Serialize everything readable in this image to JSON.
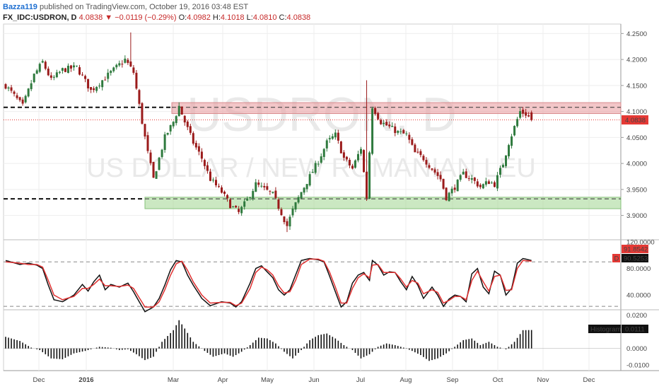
{
  "header": {
    "user": "Bazza119",
    "published": "published on TradingView.com, October 19, 2016 03:48 EST",
    "symbol": "FX_IDC:USDRON, D",
    "last": "4.0838",
    "change": "−0.0119 (−0.29%)",
    "open_label": "O:",
    "open": "4.0982",
    "high_label": "H:",
    "high": "4.1018",
    "low_label": "L:",
    "low": "4.0810",
    "close_label": "C:",
    "close": "4.0838"
  },
  "watermark": {
    "symbol": "USDRON, D",
    "description": "US DOLLAR / NEW ROMANIAN LEU"
  },
  "colors": {
    "up": "#2f7a3e",
    "down": "#9b1b1b",
    "resistance_zone": "#e9a0a3",
    "support_zone": "#a8d89a",
    "stoch_k": "#111111",
    "stoch_d": "#e03030",
    "price_badge": "#e53935"
  },
  "chart_data": {
    "type": "candlestick",
    "price_axis": {
      "ylim": [
        3.86,
        4.26
      ],
      "ticks": [
        "4.2500",
        "4.2000",
        "4.1500",
        "4.1000",
        "4.0500",
        "4.0000",
        "3.9500",
        "3.9000"
      ]
    },
    "x_axis_labels": [
      "Dec",
      "2016",
      "Mar",
      "Apr",
      "May",
      "Jun",
      "Jul",
      "Aug",
      "Sep",
      "Oct",
      "Nov",
      "Dec"
    ],
    "last_price_label": "4.0838",
    "levels": [
      {
        "type": "resistance_line",
        "value": 4.108
      },
      {
        "type": "resistance_zone",
        "from": 4.096,
        "to": 4.117
      },
      {
        "type": "support_line",
        "value": 3.932
      },
      {
        "type": "support_zone",
        "from": 3.913,
        "to": 3.935
      }
    ],
    "price_anchors": [
      [
        0,
        4.15
      ],
      [
        6,
        4.11
      ],
      [
        10,
        4.17
      ],
      [
        13,
        4.195
      ],
      [
        16,
        4.16
      ],
      [
        20,
        4.18
      ],
      [
        25,
        4.185
      ],
      [
        30,
        4.14
      ],
      [
        34,
        4.16
      ],
      [
        38,
        4.18
      ],
      [
        42,
        4.2
      ],
      [
        45,
        4.175
      ],
      [
        48,
        4.08
      ],
      [
        50,
        4.02
      ],
      [
        52,
        3.97
      ],
      [
        56,
        4.05
      ],
      [
        59,
        4.08
      ],
      [
        61,
        4.11
      ],
      [
        63,
        4.08
      ],
      [
        66,
        4.04
      ],
      [
        69,
        4.01
      ],
      [
        72,
        3.97
      ],
      [
        76,
        3.945
      ],
      [
        79,
        3.92
      ],
      [
        82,
        3.905
      ],
      [
        85,
        3.93
      ],
      [
        88,
        3.96
      ],
      [
        91,
        3.95
      ],
      [
        94,
        3.94
      ],
      [
        97,
        3.905
      ],
      [
        99,
        3.88
      ],
      [
        101,
        3.91
      ],
      [
        104,
        3.945
      ],
      [
        107,
        3.975
      ],
      [
        110,
        4.005
      ],
      [
        113,
        4.04
      ],
      [
        116,
        4.055
      ],
      [
        119,
        4.01
      ],
      [
        122,
        3.99
      ],
      [
        125,
        4.03
      ],
      [
        127,
        3.935
      ],
      [
        129,
        4.11
      ],
      [
        132,
        4.08
      ],
      [
        135,
        4.07
      ],
      [
        138,
        4.06
      ],
      [
        141,
        4.055
      ],
      [
        144,
        4.02
      ],
      [
        147,
        4.01
      ],
      [
        150,
        3.99
      ],
      [
        153,
        3.97
      ],
      [
        155,
        3.935
      ],
      [
        158,
        3.955
      ],
      [
        161,
        3.98
      ],
      [
        164,
        3.97
      ],
      [
        167,
        3.955
      ],
      [
        170,
        3.965
      ],
      [
        172,
        3.96
      ],
      [
        175,
        4.0
      ],
      [
        177,
        4.04
      ],
      [
        179,
        4.07
      ],
      [
        181,
        4.1
      ],
      [
        183,
        4.095
      ],
      [
        185,
        4.084
      ]
    ],
    "stochastic": {
      "ylim": [
        20,
        120
      ],
      "ticks": [
        "120.0000",
        "80.0000",
        "40.0000"
      ],
      "k_label": "91.8542",
      "d_label": "90.5253",
      "badge": "D",
      "levels": [
        90,
        23
      ],
      "k_anchors": [
        [
          0,
          92
        ],
        [
          5,
          86
        ],
        [
          8,
          88
        ],
        [
          11,
          85
        ],
        [
          13,
          80
        ],
        [
          15,
          55
        ],
        [
          17,
          33
        ],
        [
          20,
          30
        ],
        [
          24,
          40
        ],
        [
          27,
          56
        ],
        [
          29,
          46
        ],
        [
          31,
          60
        ],
        [
          33,
          70
        ],
        [
          35,
          48
        ],
        [
          37,
          56
        ],
        [
          40,
          52
        ],
        [
          43,
          58
        ],
        [
          45,
          45
        ],
        [
          47,
          30
        ],
        [
          49,
          15
        ],
        [
          52,
          22
        ],
        [
          54,
          35
        ],
        [
          56,
          55
        ],
        [
          58,
          78
        ],
        [
          60,
          92
        ],
        [
          62,
          90
        ],
        [
          64,
          70
        ],
        [
          66,
          55
        ],
        [
          69,
          35
        ],
        [
          72,
          24
        ],
        [
          76,
          30
        ],
        [
          79,
          28
        ],
        [
          81,
          22
        ],
        [
          83,
          30
        ],
        [
          86,
          58
        ],
        [
          88,
          80
        ],
        [
          90,
          84
        ],
        [
          92,
          75
        ],
        [
          94,
          66
        ],
        [
          96,
          48
        ],
        [
          98,
          40
        ],
        [
          100,
          48
        ],
        [
          102,
          70
        ],
        [
          104,
          92
        ],
        [
          107,
          95
        ],
        [
          110,
          93
        ],
        [
          112,
          90
        ],
        [
          114,
          68
        ],
        [
          116,
          45
        ],
        [
          118,
          22
        ],
        [
          120,
          30
        ],
        [
          122,
          58
        ],
        [
          124,
          70
        ],
        [
          126,
          74
        ],
        [
          128,
          62
        ],
        [
          129,
          92
        ],
        [
          131,
          85
        ],
        [
          133,
          70
        ],
        [
          135,
          75
        ],
        [
          137,
          74
        ],
        [
          139,
          60
        ],
        [
          141,
          48
        ],
        [
          143,
          68
        ],
        [
          145,
          55
        ],
        [
          147,
          35
        ],
        [
          150,
          52
        ],
        [
          152,
          40
        ],
        [
          154,
          23
        ],
        [
          156,
          34
        ],
        [
          158,
          40
        ],
        [
          160,
          38
        ],
        [
          162,
          30
        ],
        [
          164,
          72
        ],
        [
          166,
          80
        ],
        [
          168,
          52
        ],
        [
          170,
          42
        ],
        [
          172,
          76
        ],
        [
          174,
          70
        ],
        [
          176,
          40
        ],
        [
          178,
          50
        ],
        [
          180,
          88
        ],
        [
          182,
          95
        ],
        [
          185,
          92
        ]
      ],
      "d_anchors": [
        [
          0,
          90
        ],
        [
          5,
          88
        ],
        [
          8,
          86
        ],
        [
          11,
          86
        ],
        [
          13,
          82
        ],
        [
          15,
          62
        ],
        [
          17,
          40
        ],
        [
          20,
          33
        ],
        [
          24,
          38
        ],
        [
          27,
          50
        ],
        [
          29,
          50
        ],
        [
          31,
          56
        ],
        [
          33,
          64
        ],
        [
          35,
          54
        ],
        [
          37,
          54
        ],
        [
          40,
          53
        ],
        [
          43,
          55
        ],
        [
          45,
          50
        ],
        [
          47,
          36
        ],
        [
          49,
          22
        ],
        [
          52,
          22
        ],
        [
          54,
          30
        ],
        [
          56,
          48
        ],
        [
          58,
          70
        ],
        [
          60,
          87
        ],
        [
          62,
          91
        ],
        [
          64,
          77
        ],
        [
          66,
          60
        ],
        [
          69,
          40
        ],
        [
          72,
          28
        ],
        [
          76,
          29
        ],
        [
          79,
          29
        ],
        [
          81,
          24
        ],
        [
          83,
          28
        ],
        [
          86,
          50
        ],
        [
          88,
          74
        ],
        [
          90,
          82
        ],
        [
          92,
          78
        ],
        [
          94,
          70
        ],
        [
          96,
          54
        ],
        [
          98,
          43
        ],
        [
          100,
          45
        ],
        [
          102,
          62
        ],
        [
          104,
          86
        ],
        [
          107,
          94
        ],
        [
          110,
          94
        ],
        [
          112,
          91
        ],
        [
          114,
          74
        ],
        [
          116,
          52
        ],
        [
          118,
          28
        ],
        [
          120,
          28
        ],
        [
          122,
          50
        ],
        [
          124,
          66
        ],
        [
          126,
          72
        ],
        [
          128,
          66
        ],
        [
          129,
          85
        ],
        [
          131,
          86
        ],
        [
          133,
          74
        ],
        [
          135,
          74
        ],
        [
          137,
          74
        ],
        [
          139,
          64
        ],
        [
          141,
          52
        ],
        [
          143,
          62
        ],
        [
          145,
          58
        ],
        [
          147,
          42
        ],
        [
          150,
          48
        ],
        [
          152,
          44
        ],
        [
          154,
          28
        ],
        [
          156,
          32
        ],
        [
          158,
          38
        ],
        [
          160,
          38
        ],
        [
          162,
          33
        ],
        [
          164,
          62
        ],
        [
          166,
          76
        ],
        [
          168,
          60
        ],
        [
          170,
          46
        ],
        [
          172,
          68
        ],
        [
          174,
          70
        ],
        [
          176,
          47
        ],
        [
          178,
          48
        ],
        [
          180,
          80
        ],
        [
          182,
          92
        ],
        [
          185,
          91
        ]
      ]
    },
    "histogram": {
      "label": "Histogram",
      "value_label": "0.0111",
      "ylim": [
        -0.0125,
        0.022
      ],
      "ticks": [
        "0.0200",
        "0.0000",
        "-0.0100"
      ],
      "anchors": [
        [
          0,
          0.007
        ],
        [
          5,
          0.0045
        ],
        [
          9,
          0.0005
        ],
        [
          12,
          -0.001
        ],
        [
          16,
          -0.006
        ],
        [
          20,
          -0.0065
        ],
        [
          24,
          -0.003
        ],
        [
          28,
          -0.0015
        ],
        [
          33,
          0.001
        ],
        [
          37,
          0.0004
        ],
        [
          40,
          -0.001
        ],
        [
          43,
          -0.0005
        ],
        [
          46,
          -0.0035
        ],
        [
          49,
          -0.007
        ],
        [
          52,
          -0.005
        ],
        [
          55,
          0.004
        ],
        [
          59,
          0.011
        ],
        [
          61,
          0.017
        ],
        [
          63,
          0.012
        ],
        [
          66,
          0.004
        ],
        [
          70,
          -0.0015
        ],
        [
          73,
          -0.005
        ],
        [
          77,
          -0.003
        ],
        [
          80,
          -0.005
        ],
        [
          83,
          -0.002
        ],
        [
          86,
          0.002
        ],
        [
          89,
          0.0065
        ],
        [
          92,
          0.006
        ],
        [
          95,
          0.003
        ],
        [
          98,
          -0.002
        ],
        [
          101,
          -0.006
        ],
        [
          104,
          -0.001
        ],
        [
          107,
          0.005
        ],
        [
          110,
          0.008
        ],
        [
          113,
          0.009
        ],
        [
          116,
          0.006
        ],
        [
          119,
          0.002
        ],
        [
          122,
          -0.001
        ],
        [
          125,
          -0.006
        ],
        [
          128,
          -0.0035
        ],
        [
          131,
          0.001
        ],
        [
          134,
          0.003
        ],
        [
          137,
          0.002
        ],
        [
          140,
          0.0005
        ],
        [
          143,
          -0.0015
        ],
        [
          146,
          -0.004
        ],
        [
          149,
          -0.0075
        ],
        [
          152,
          -0.006
        ],
        [
          155,
          -0.003
        ],
        [
          158,
          0.001
        ],
        [
          161,
          0.005
        ],
        [
          164,
          0.006
        ],
        [
          167,
          0.002
        ],
        [
          170,
          0.004
        ],
        [
          173,
          0.001
        ],
        [
          176,
          -0.0005
        ],
        [
          179,
          0.004
        ],
        [
          182,
          0.011
        ],
        [
          185,
          0.0111
        ]
      ]
    }
  }
}
